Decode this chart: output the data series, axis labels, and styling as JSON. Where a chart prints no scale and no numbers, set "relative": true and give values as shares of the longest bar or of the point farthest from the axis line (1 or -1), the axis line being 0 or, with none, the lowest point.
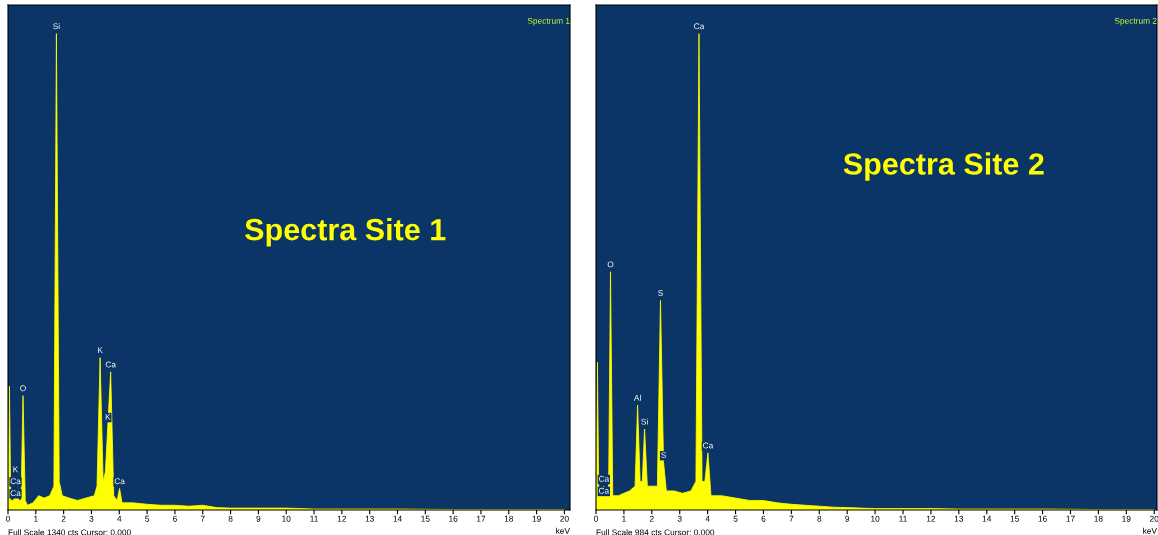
{
  "chart_data": [
    {
      "type": "area",
      "title": "Spectrum 1",
      "xlabel": "keV",
      "relative": true,
      "color": "#ffff00",
      "grid": false,
      "tick_labels": "x",
      "xlim": [
        0,
        20.2
      ],
      "xticks": [
        0,
        1,
        2,
        3,
        4,
        5,
        6,
        7,
        8,
        9,
        10,
        11,
        12,
        13,
        14,
        15,
        16,
        17,
        18,
        19,
        20
      ],
      "x": [
        0,
        0.05,
        0.1,
        0.2,
        0.27,
        0.33,
        0.4,
        0.47,
        0.54,
        0.62,
        0.7,
        0.9,
        1.1,
        1.3,
        1.5,
        1.65,
        1.74,
        1.84,
        1.95,
        2.2,
        2.5,
        2.8,
        3.1,
        3.2,
        3.31,
        3.42,
        3.5,
        3.59,
        3.69,
        3.8,
        3.92,
        4.01,
        4.1,
        4.5,
        5,
        5.5,
        6,
        6.5,
        7,
        7.5,
        8,
        9,
        10,
        11,
        12,
        14,
        16,
        18,
        20
      ],
      "values": [
        0.02,
        0.26,
        0.02,
        0.02,
        0.04,
        0.03,
        0.02,
        0.02,
        0.24,
        0.02,
        0.01,
        0.015,
        0.03,
        0.025,
        0.03,
        0.05,
        1.0,
        0.06,
        0.03,
        0.025,
        0.02,
        0.025,
        0.03,
        0.05,
        0.32,
        0.06,
        0.08,
        0.18,
        0.29,
        0.03,
        0.02,
        0.045,
        0.015,
        0.015,
        0.012,
        0.01,
        0.01,
        0.008,
        0.01,
        0.005,
        0.004,
        0.004,
        0.004,
        0.002,
        0.002,
        0.002,
        0.001,
        0.001,
        0.001
      ],
      "annotations": [
        "Spectra Site 1",
        "Full Scale 1340 cts Cursor: 0.000",
        {
          "text": "Si",
          "x": 1.74,
          "y": 1.0
        },
        {
          "text": "O",
          "x": 0.54,
          "y": 0.24
        },
        {
          "text": "K",
          "x": 3.31,
          "y": 0.32
        },
        {
          "text": "Ca",
          "x": 3.69,
          "y": 0.29
        },
        {
          "text": "K",
          "x": 3.59,
          "y": 0.18
        },
        {
          "text": "Ca",
          "x": 4.01,
          "y": 0.045
        },
        {
          "text": "K",
          "x": 0.27,
          "y": 0.07
        },
        {
          "text": "Ca",
          "x": 0.27,
          "y": 0.045
        },
        {
          "text": "Ca",
          "x": 0.27,
          "y": 0.02
        }
      ]
    },
    {
      "type": "area",
      "title": "Spectrum 2",
      "xlabel": "keV",
      "relative": true,
      "color": "#ffff00",
      "grid": false,
      "tick_labels": "x",
      "xlim": [
        0,
        20.1
      ],
      "xticks": [
        0,
        1,
        2,
        3,
        4,
        5,
        6,
        7,
        8,
        9,
        10,
        11,
        12,
        13,
        14,
        15,
        16,
        17,
        18,
        19,
        20
      ],
      "x": [
        0,
        0.05,
        0.1,
        0.2,
        0.28,
        0.35,
        0.45,
        0.52,
        0.6,
        0.8,
        1.0,
        1.2,
        1.4,
        1.49,
        1.58,
        1.66,
        1.74,
        1.84,
        2.0,
        2.2,
        2.31,
        2.42,
        2.52,
        2.8,
        3.1,
        3.4,
        3.58,
        3.69,
        3.8,
        3.9,
        4.01,
        4.12,
        4.5,
        5,
        5.5,
        6,
        6.5,
        7,
        7.5,
        8,
        8.5,
        9,
        10,
        11,
        12,
        13,
        14,
        16,
        18,
        20
      ],
      "values": [
        0.02,
        0.31,
        0.03,
        0.03,
        0.05,
        0.03,
        0.03,
        0.5,
        0.03,
        0.03,
        0.035,
        0.04,
        0.05,
        0.22,
        0.06,
        0.06,
        0.17,
        0.05,
        0.05,
        0.05,
        0.44,
        0.1,
        0.04,
        0.04,
        0.035,
        0.04,
        0.06,
        1.0,
        0.06,
        0.06,
        0.12,
        0.03,
        0.03,
        0.025,
        0.02,
        0.02,
        0.015,
        0.012,
        0.01,
        0.008,
        0.006,
        0.005,
        0.003,
        0.003,
        0.003,
        0.002,
        0.002,
        0.002,
        0.001,
        0.001
      ],
      "annotations": [
        "Spectra Site 2",
        "Full Scale 984 cts Cursor: 0.000",
        {
          "text": "Ca",
          "x": 3.69,
          "y": 1.0
        },
        {
          "text": "O",
          "x": 0.52,
          "y": 0.5
        },
        {
          "text": "S",
          "x": 2.31,
          "y": 0.44
        },
        {
          "text": "Al",
          "x": 1.49,
          "y": 0.22
        },
        {
          "text": "Si",
          "x": 1.74,
          "y": 0.17
        },
        {
          "text": "S",
          "x": 2.42,
          "y": 0.1
        },
        {
          "text": "Ca",
          "x": 4.01,
          "y": 0.12
        },
        {
          "text": "Ca",
          "x": 0.28,
          "y": 0.05
        },
        {
          "text": "Ca",
          "x": 0.28,
          "y": 0.025
        }
      ]
    }
  ]
}
